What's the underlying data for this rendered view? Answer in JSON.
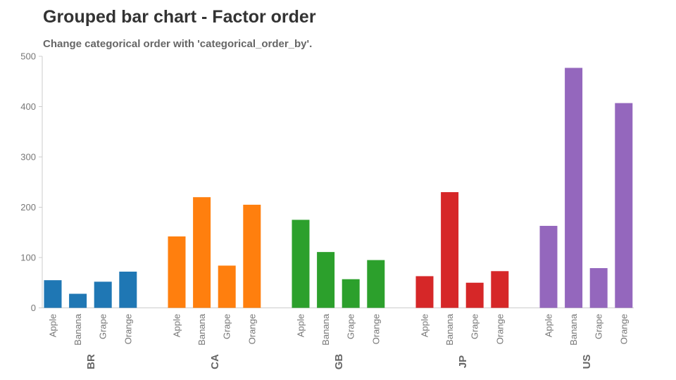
{
  "title": "Grouped bar chart - Factor order",
  "subtitle": "Change categorical order with 'categorical_order_by'.",
  "chart_data": {
    "type": "bar",
    "groups": [
      "BR",
      "CA",
      "GB",
      "JP",
      "US"
    ],
    "categories": [
      "Apple",
      "Banana",
      "Grape",
      "Orange"
    ],
    "series": [
      {
        "group": "BR",
        "color": "#1f77b4",
        "values": [
          55,
          28,
          52,
          72
        ]
      },
      {
        "group": "CA",
        "color": "#ff7f0e",
        "values": [
          142,
          220,
          84,
          205
        ]
      },
      {
        "group": "GB",
        "color": "#2ca02c",
        "values": [
          175,
          111,
          57,
          95
        ]
      },
      {
        "group": "JP",
        "color": "#d62728",
        "values": [
          63,
          230,
          50,
          73
        ]
      },
      {
        "group": "US",
        "color": "#9467bd",
        "values": [
          163,
          477,
          79,
          407
        ]
      }
    ],
    "yticks": [
      "0",
      "100",
      "200",
      "300",
      "400",
      "500"
    ],
    "ylim": [
      0,
      500
    ],
    "grid": false,
    "legend": "none"
  }
}
